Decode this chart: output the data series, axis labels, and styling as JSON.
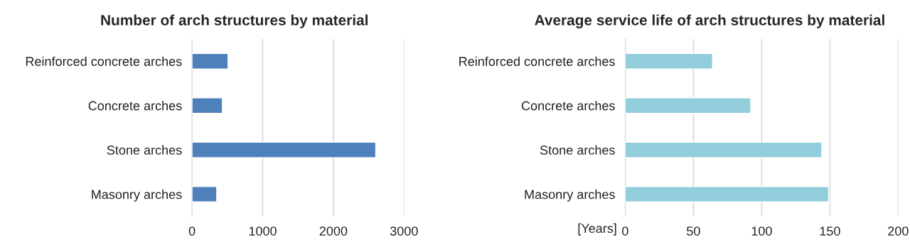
{
  "chart_data": [
    {
      "type": "bar",
      "orientation": "horizontal",
      "title": "Number of arch structures by material",
      "categories": [
        "Reinforced concrete arches",
        "Concrete arches",
        "Stone arches",
        "Masonry arches"
      ],
      "values": [
        510,
        430,
        2600,
        350
      ],
      "color": "#4e80bc",
      "xlim": [
        0,
        3000
      ],
      "xticks": [
        0,
        1000,
        2000,
        3000
      ],
      "grid": "x"
    },
    {
      "type": "bar",
      "orientation": "horizontal",
      "title": "Average service life of arch structures by material",
      "xlabel": "[Years]",
      "categories": [
        "Reinforced concrete arches",
        "Concrete arches",
        "Stone arches",
        "Masonry arches"
      ],
      "values": [
        64,
        92,
        144,
        149
      ],
      "color": "#92cddc",
      "xlim": [
        0,
        200
      ],
      "xticks": [
        0,
        50,
        100,
        150,
        200
      ],
      "grid": "x"
    }
  ]
}
